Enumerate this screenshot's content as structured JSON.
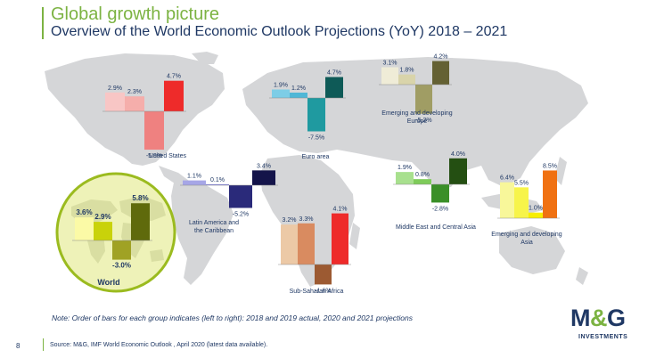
{
  "header": {
    "title": "Global growth picture",
    "subtitle": "Overview of the World Economic Outlook Projections (YoY) 2018 – 2021"
  },
  "footer": {
    "note": "Note: Order of bars for each group indicates (left to right): 2018 and 2019 actual, 2020 and 2021 projections",
    "page_number": "8",
    "source": "Source: M&G, IMF World Economic Outlook , April 2020 (latest data available)."
  },
  "logo": {
    "text": "M&G",
    "subtext": "INVESTMENTS"
  },
  "chart_data": {
    "type": "bar",
    "categories": [
      "2018",
      "2019",
      "2020",
      "2021"
    ],
    "value_suffix": "%",
    "groups": [
      {
        "name": "United States",
        "values": [
          2.9,
          2.3,
          -5.9,
          4.7
        ],
        "colors": [
          "#f8c6c5",
          "#f5aeab",
          "#ef8180",
          "#ee2b2a"
        ]
      },
      {
        "name": "Euro area",
        "values": [
          1.9,
          1.2,
          -7.5,
          4.7
        ],
        "colors": [
          "#7dcde6",
          "#4fb7d6",
          "#1f9aa0",
          "#0e5a57"
        ]
      },
      {
        "name": "Emerging and developing Europe",
        "values": [
          3.1,
          1.8,
          -5.2,
          4.2
        ],
        "colors": [
          "#efecd7",
          "#d9d4aa",
          "#a09d64",
          "#646133"
        ]
      },
      {
        "name": "Latin America and the Caribbean",
        "values": [
          1.1,
          0.1,
          -5.2,
          3.4
        ],
        "colors": [
          "#a6a6e6",
          "#7a7ad6",
          "#2a2a7a",
          "#14144a"
        ]
      },
      {
        "name": "Middle East and Central Asia",
        "values": [
          1.9,
          0.8,
          -2.8,
          4.0
        ],
        "colors": [
          "#a8e08e",
          "#7ecb5a",
          "#3a8f28",
          "#244f12"
        ]
      },
      {
        "name": "Emerging and developing Asia",
        "values": [
          6.4,
          5.5,
          1.0,
          8.5
        ],
        "colors": [
          "#f8f79a",
          "#f7f44a",
          "#f7ee00",
          "#f07112"
        ]
      },
      {
        "name": "Sub-Saharan Africa",
        "values": [
          3.2,
          3.3,
          -1.6,
          4.1
        ],
        "colors": [
          "#ecc9a6",
          "#d98b60",
          "#9c5a32",
          "#ee2b2a"
        ]
      },
      {
        "name": "World",
        "values": [
          3.6,
          2.9,
          -3.0,
          5.8
        ],
        "colors": [
          "#fbfaa6",
          "#c9d20a",
          "#a0a224",
          "#5f6a0c"
        ]
      }
    ]
  }
}
